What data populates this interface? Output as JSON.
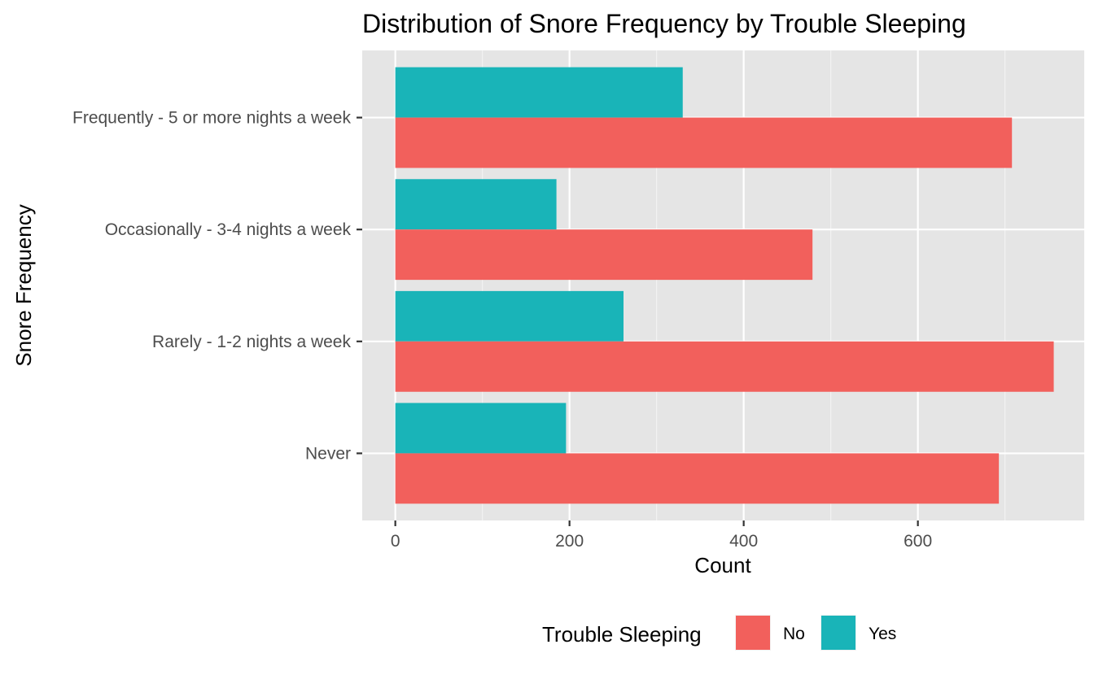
{
  "chart_data": {
    "type": "bar",
    "orientation": "horizontal",
    "title": "Distribution of Snore Frequency by Trouble Sleeping",
    "xlabel": "Count",
    "ylabel": "Snore Frequency",
    "categories": [
      "Frequently - 5 or more nights a week",
      "Occasionally - 3-4 nights a week",
      "Rarely - 1-2 nights a week",
      "Never"
    ],
    "series": [
      {
        "name": "Yes",
        "color": "#19b4b8",
        "values": [
          330,
          185,
          262,
          196
        ]
      },
      {
        "name": "No",
        "color": "#f2605c",
        "values": [
          708,
          479,
          756,
          693
        ]
      }
    ],
    "xlim": [
      -38,
      791
    ],
    "xticks": [
      0,
      200,
      400,
      600
    ],
    "xtick_labels": [
      "0",
      "200",
      "400",
      "600"
    ],
    "grid": true,
    "legend": {
      "title": "Trouble Sleeping",
      "position": "bottom",
      "entries": [
        {
          "label": "No",
          "color": "#f2605c"
        },
        {
          "label": "Yes",
          "color": "#19b4b8"
        }
      ]
    }
  }
}
